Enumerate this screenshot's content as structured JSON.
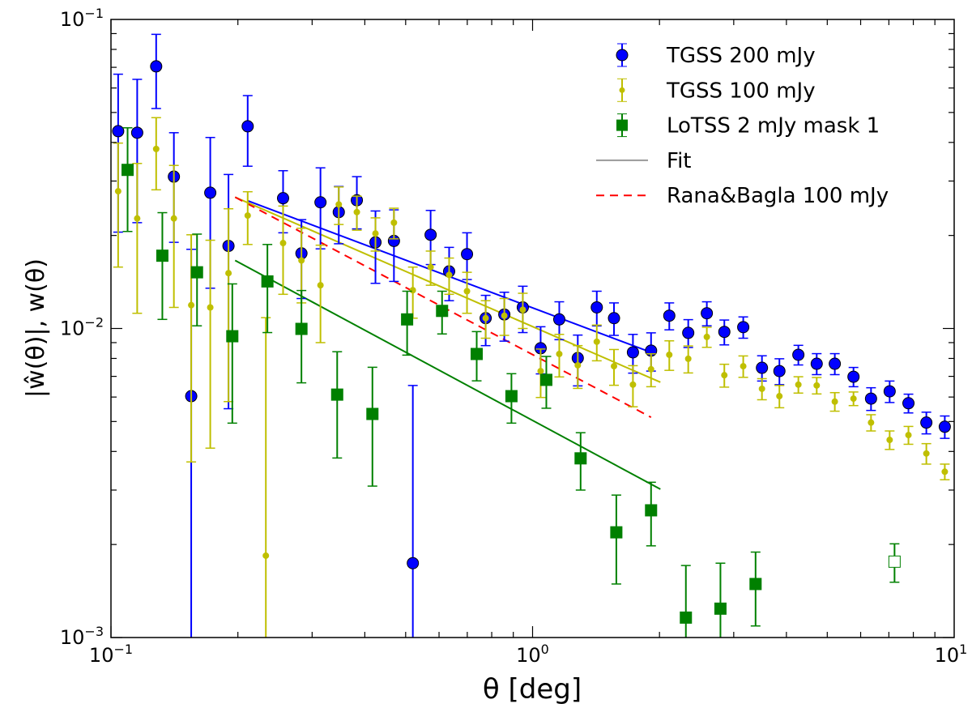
{
  "chart_data": {
    "type": "scatter",
    "xlabel": "θ [deg]",
    "ylabel": "|ŵ(θ)|, w(θ)",
    "xscale": "log",
    "yscale": "log",
    "xlim": [
      0.1,
      10
    ],
    "ylim": [
      0.001,
      0.1
    ],
    "xticks": [
      {
        "value": 0.1,
        "base": "10",
        "exp": "−1"
      },
      {
        "value": 1,
        "base": "10",
        "exp": "0"
      },
      {
        "value": 10,
        "base": "10",
        "exp": "1"
      }
    ],
    "yticks": [
      {
        "value": 0.1,
        "base": "10",
        "exp": "−1"
      },
      {
        "value": 0.01,
        "base": "10",
        "exp": "−2"
      },
      {
        "value": 0.001,
        "base": "10",
        "exp": "−3"
      }
    ],
    "grid": false,
    "legend_position": "top-right",
    "series": [
      {
        "name": "TGSS 200 mJy",
        "kind": "points",
        "marker": "circle",
        "color": "#0000ff",
        "x": [
          0.104,
          0.1154,
          0.128,
          0.141,
          0.155,
          0.172,
          0.19,
          0.211,
          0.256,
          0.283,
          0.314,
          0.347,
          0.383,
          0.424,
          0.469,
          0.52,
          0.573,
          0.634,
          0.699,
          0.774,
          0.857,
          0.948,
          1.045,
          1.157,
          1.28,
          1.42,
          1.56,
          1.73,
          1.91,
          2.11,
          2.34,
          2.59,
          2.85,
          3.16,
          3.5,
          3.85,
          4.27,
          4.72,
          5.21,
          5.77,
          6.35,
          7.03,
          7.79,
          8.59,
          9.5
        ],
        "y": [
          0.0435,
          0.043,
          0.0705,
          0.031,
          0.00604,
          0.0275,
          0.0185,
          0.0451,
          0.0264,
          0.0175,
          0.0256,
          0.0238,
          0.026,
          0.019,
          0.0192,
          0.00174,
          0.0201,
          0.0153,
          0.0174,
          0.0108,
          0.0111,
          0.0117,
          0.00863,
          0.0107,
          0.00802,
          0.0117,
          0.0108,
          0.00837,
          0.00848,
          0.011,
          0.00968,
          0.0112,
          0.00975,
          0.0101,
          0.00746,
          0.00728,
          0.00822,
          0.00769,
          0.00769,
          0.00698,
          0.00593,
          0.00626,
          0.00573,
          0.00496,
          0.00481
        ],
        "yerr": [
          0.023,
          0.021,
          0.019,
          0.012,
          0.012,
          0.014,
          0.013,
          0.0116,
          0.006,
          0.005,
          0.0075,
          0.005,
          0.005,
          0.005,
          0.005,
          0.0048,
          0.004,
          0.003,
          0.003,
          0.002,
          0.002,
          0.002,
          0.0015,
          0.0015,
          0.0015,
          0.0015,
          0.0013,
          0.0012,
          0.0012,
          0.0011,
          0.001,
          0.001,
          0.0009,
          0.0008,
          0.0007,
          0.0007,
          0.0006,
          0.0006,
          0.0006,
          0.0005,
          0.0005,
          0.0005,
          0.0004,
          0.0004,
          0.0004
        ]
      },
      {
        "name": "TGSS 100 mJy",
        "kind": "points",
        "marker": "small-circle",
        "color": "#bfbf00",
        "x": [
          0.104,
          0.1154,
          0.128,
          0.141,
          0.155,
          0.172,
          0.19,
          0.211,
          0.233,
          0.256,
          0.283,
          0.314,
          0.347,
          0.383,
          0.424,
          0.469,
          0.52,
          0.573,
          0.634,
          0.699,
          0.774,
          0.857,
          0.948,
          1.045,
          1.157,
          1.28,
          1.42,
          1.56,
          1.73,
          1.91,
          2.11,
          2.34,
          2.59,
          2.85,
          3.16,
          3.5,
          3.85,
          4.27,
          4.72,
          5.21,
          5.77,
          6.35,
          7.03,
          7.79,
          8.59,
          9.5
        ],
        "y": [
          0.0278,
          0.0227,
          0.0381,
          0.0227,
          0.0119,
          0.0117,
          0.0151,
          0.0232,
          0.00184,
          0.0189,
          0.0166,
          0.0138,
          0.0252,
          0.0238,
          0.0203,
          0.022,
          0.0133,
          0.0158,
          0.0149,
          0.0132,
          0.0108,
          0.011,
          0.0115,
          0.00728,
          0.00827,
          0.0076,
          0.00906,
          0.00755,
          0.00658,
          0.00738,
          0.00822,
          0.00798,
          0.00939,
          0.00706,
          0.00755,
          0.00638,
          0.00604,
          0.00658,
          0.00654,
          0.0058,
          0.00593,
          0.00496,
          0.00436,
          0.00452,
          0.00394,
          0.00344
        ],
        "yerr": [
          0.012,
          0.0115,
          0.01,
          0.011,
          0.0082,
          0.0076,
          0.0093,
          0.0045,
          0.009,
          0.006,
          0.0045,
          0.0048,
          0.0035,
          0.003,
          0.0025,
          0.0025,
          0.0025,
          0.002,
          0.002,
          0.002,
          0.0015,
          0.0015,
          0.0015,
          0.0013,
          0.0013,
          0.0012,
          0.0012,
          0.001,
          0.001,
          0.0009,
          0.0009,
          0.0008,
          0.0007,
          0.0006,
          0.0006,
          0.0005,
          0.0005,
          0.0004,
          0.0004,
          0.0004,
          0.0003,
          0.0003,
          0.0003,
          0.0003,
          0.0003,
          0.0002
        ]
      },
      {
        "name": "LoTSS 2 mJy mask 1",
        "kind": "points",
        "marker": "square",
        "color": "#008000",
        "x": [
          0.1095,
          0.1324,
          0.16,
          0.194,
          0.235,
          0.283,
          0.344,
          0.417,
          0.504,
          0.61,
          0.737,
          0.891,
          1.078,
          1.3,
          1.58,
          1.91,
          2.31,
          2.79,
          3.38
        ],
        "y": [
          0.0326,
          0.0172,
          0.0152,
          0.00944,
          0.0142,
          0.00997,
          0.00611,
          0.00529,
          0.0107,
          0.0114,
          0.00827,
          0.00604,
          0.00682,
          0.0038,
          0.00219,
          0.00258,
          0.00116,
          0.00124,
          0.00149
        ],
        "yerr": [
          0.012,
          0.0065,
          0.005,
          0.0045,
          0.0045,
          0.0033,
          0.0023,
          0.0022,
          0.0025,
          0.0018,
          0.0015,
          0.0011,
          0.0013,
          0.0008,
          0.0007,
          0.0006,
          0.00055,
          0.0005,
          0.0004
        ],
        "negative_points": {
          "x": [
            7.22
          ],
          "y": [
            0.00176
          ],
          "yerr": [
            0.00025
          ]
        }
      },
      {
        "name": "Fit",
        "kind": "line",
        "color": "#0000ff",
        "legend_color": "#999999",
        "x": [
          0.211,
          1.91
        ],
        "y": [
          0.0259,
          0.00837
        ]
      },
      {
        "name": "",
        "kind": "line",
        "color": "#bfbf00",
        "x": [
          0.197,
          2.01
        ],
        "y": [
          0.0266,
          0.0067
        ]
      },
      {
        "name": "",
        "kind": "line",
        "color": "#008000",
        "x": [
          0.197,
          2.01
        ],
        "y": [
          0.0166,
          0.00302
        ]
      },
      {
        "name": "Rana&Bagla 100 mJy",
        "kind": "dashed-line",
        "color": "#ff0000",
        "x": [
          0.197,
          1.91
        ],
        "y": [
          0.0266,
          0.00516
        ]
      }
    ],
    "legend": [
      {
        "label": "TGSS 200 mJy",
        "marker": "circle",
        "color": "#0000ff"
      },
      {
        "label": "TGSS 100 mJy",
        "marker": "small-circle",
        "color": "#bfbf00"
      },
      {
        "label": "LoTSS 2 mJy mask 1",
        "marker": "square",
        "color": "#008000"
      },
      {
        "label": "Fit",
        "marker": "line",
        "color": "#999999"
      },
      {
        "label": "Rana&Bagla 100 mJy",
        "marker": "dashed",
        "color": "#ff0000"
      }
    ]
  }
}
